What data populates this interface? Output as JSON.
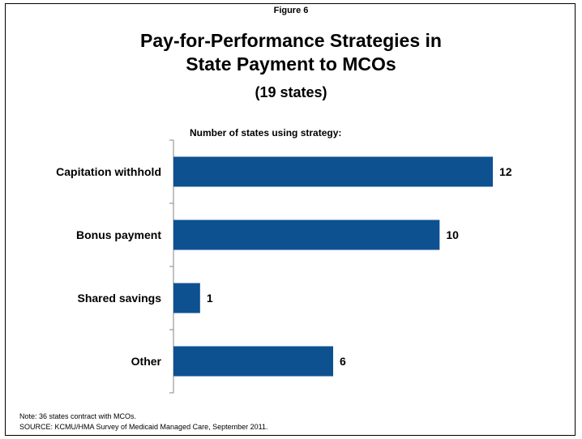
{
  "figure_label": "Figure 6",
  "title_lines": [
    "Pay-for-Performance Strategies in",
    "State Payment to MCOs"
  ],
  "subtitle": "(19 states)",
  "chart_header": "Number of states using strategy:",
  "colors": {
    "bar": "#0D5191",
    "axis": "#868686"
  },
  "chart_data": {
    "type": "bar",
    "orientation": "horizontal",
    "categories": [
      "Capitation withhold",
      "Bonus payment",
      "Shared savings",
      "Other"
    ],
    "values": [
      12,
      10,
      1,
      6
    ],
    "data_labels": [
      "12",
      "10",
      "1",
      "6"
    ],
    "title": "Pay-for-Performance Strategies in State Payment to MCOs",
    "xlabel": "Number of states using strategy:",
    "ylabel": "",
    "xlim": [
      0,
      12
    ],
    "grid": false,
    "legend": "none"
  },
  "footer": {
    "note": "Note: 36 states contract with MCOs.",
    "source": "SOURCE:  KCMU/HMA Survey of Medicaid Managed Care, September 2011."
  }
}
